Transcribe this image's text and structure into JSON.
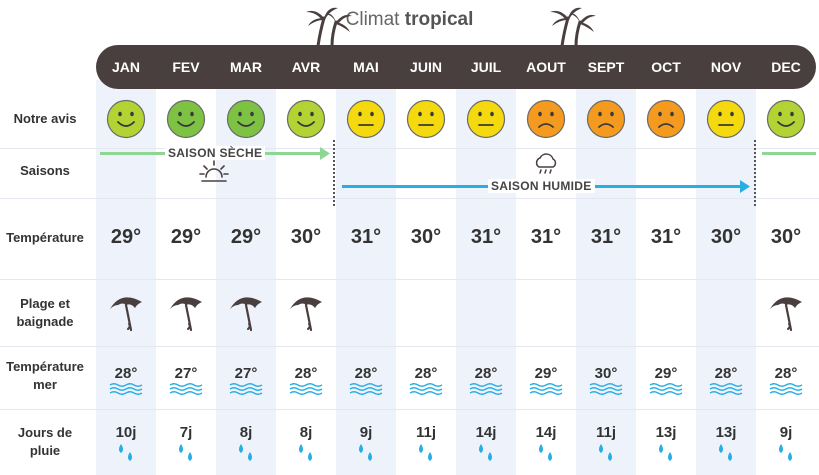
{
  "header": {
    "title_prefix": "Climat",
    "title_strong": "tropical",
    "decoration_icon": "palm-tree-icon"
  },
  "months": [
    "JAN",
    "FEV",
    "MAR",
    "AVR",
    "MAI",
    "JUIN",
    "JUIL",
    "AOUT",
    "SEPT",
    "OCT",
    "NOV",
    "DEC"
  ],
  "row_labels": {
    "avis": "Notre avis",
    "saisons": "Saisons",
    "temperature": "Température",
    "plage_line1": "Plage et",
    "plage_line2": "baignade",
    "mer_line1": "Température",
    "mer_line2": "mer",
    "pluie_line1": "Jours de",
    "pluie_line2": "pluie"
  },
  "ratings": [
    "good",
    "very-good",
    "very-good",
    "good",
    "neutral",
    "neutral",
    "neutral",
    "bad",
    "bad",
    "bad",
    "neutral",
    "good"
  ],
  "rating_colors": {
    "very-good": "#7dc242",
    "good": "#b3d334",
    "neutral": "#f5d90f",
    "bad": "#f49a1e"
  },
  "seasons": {
    "dry_label": "SAISON SÈCHE",
    "wet_label": "SAISON HUMIDE",
    "dry_color": "#8ed694",
    "wet_color": "#29aee3",
    "dry_icon": "sun-icon",
    "wet_icon": "rain-cloud-icon"
  },
  "temperatures": [
    "29°",
    "29°",
    "29°",
    "30°",
    "31°",
    "30°",
    "31°",
    "31°",
    "31°",
    "31°",
    "30°",
    "30°"
  ],
  "beach": [
    true,
    true,
    true,
    true,
    false,
    false,
    false,
    false,
    false,
    false,
    false,
    true
  ],
  "beach_icon": "beach-umbrella-icon",
  "sea_temperatures": [
    "28°",
    "27°",
    "27°",
    "28°",
    "28°",
    "28°",
    "28°",
    "29°",
    "30°",
    "29°",
    "28°",
    "28°"
  ],
  "rain_days": [
    "10j",
    "7j",
    "8j",
    "8j",
    "9j",
    "11j",
    "14j",
    "14j",
    "11j",
    "13j",
    "13j",
    "9j"
  ],
  "colors": {
    "month_bar": "#4a3f3f",
    "stripe": "#eef2fb",
    "wave": "#29aee3",
    "drop": "#29aee3"
  }
}
